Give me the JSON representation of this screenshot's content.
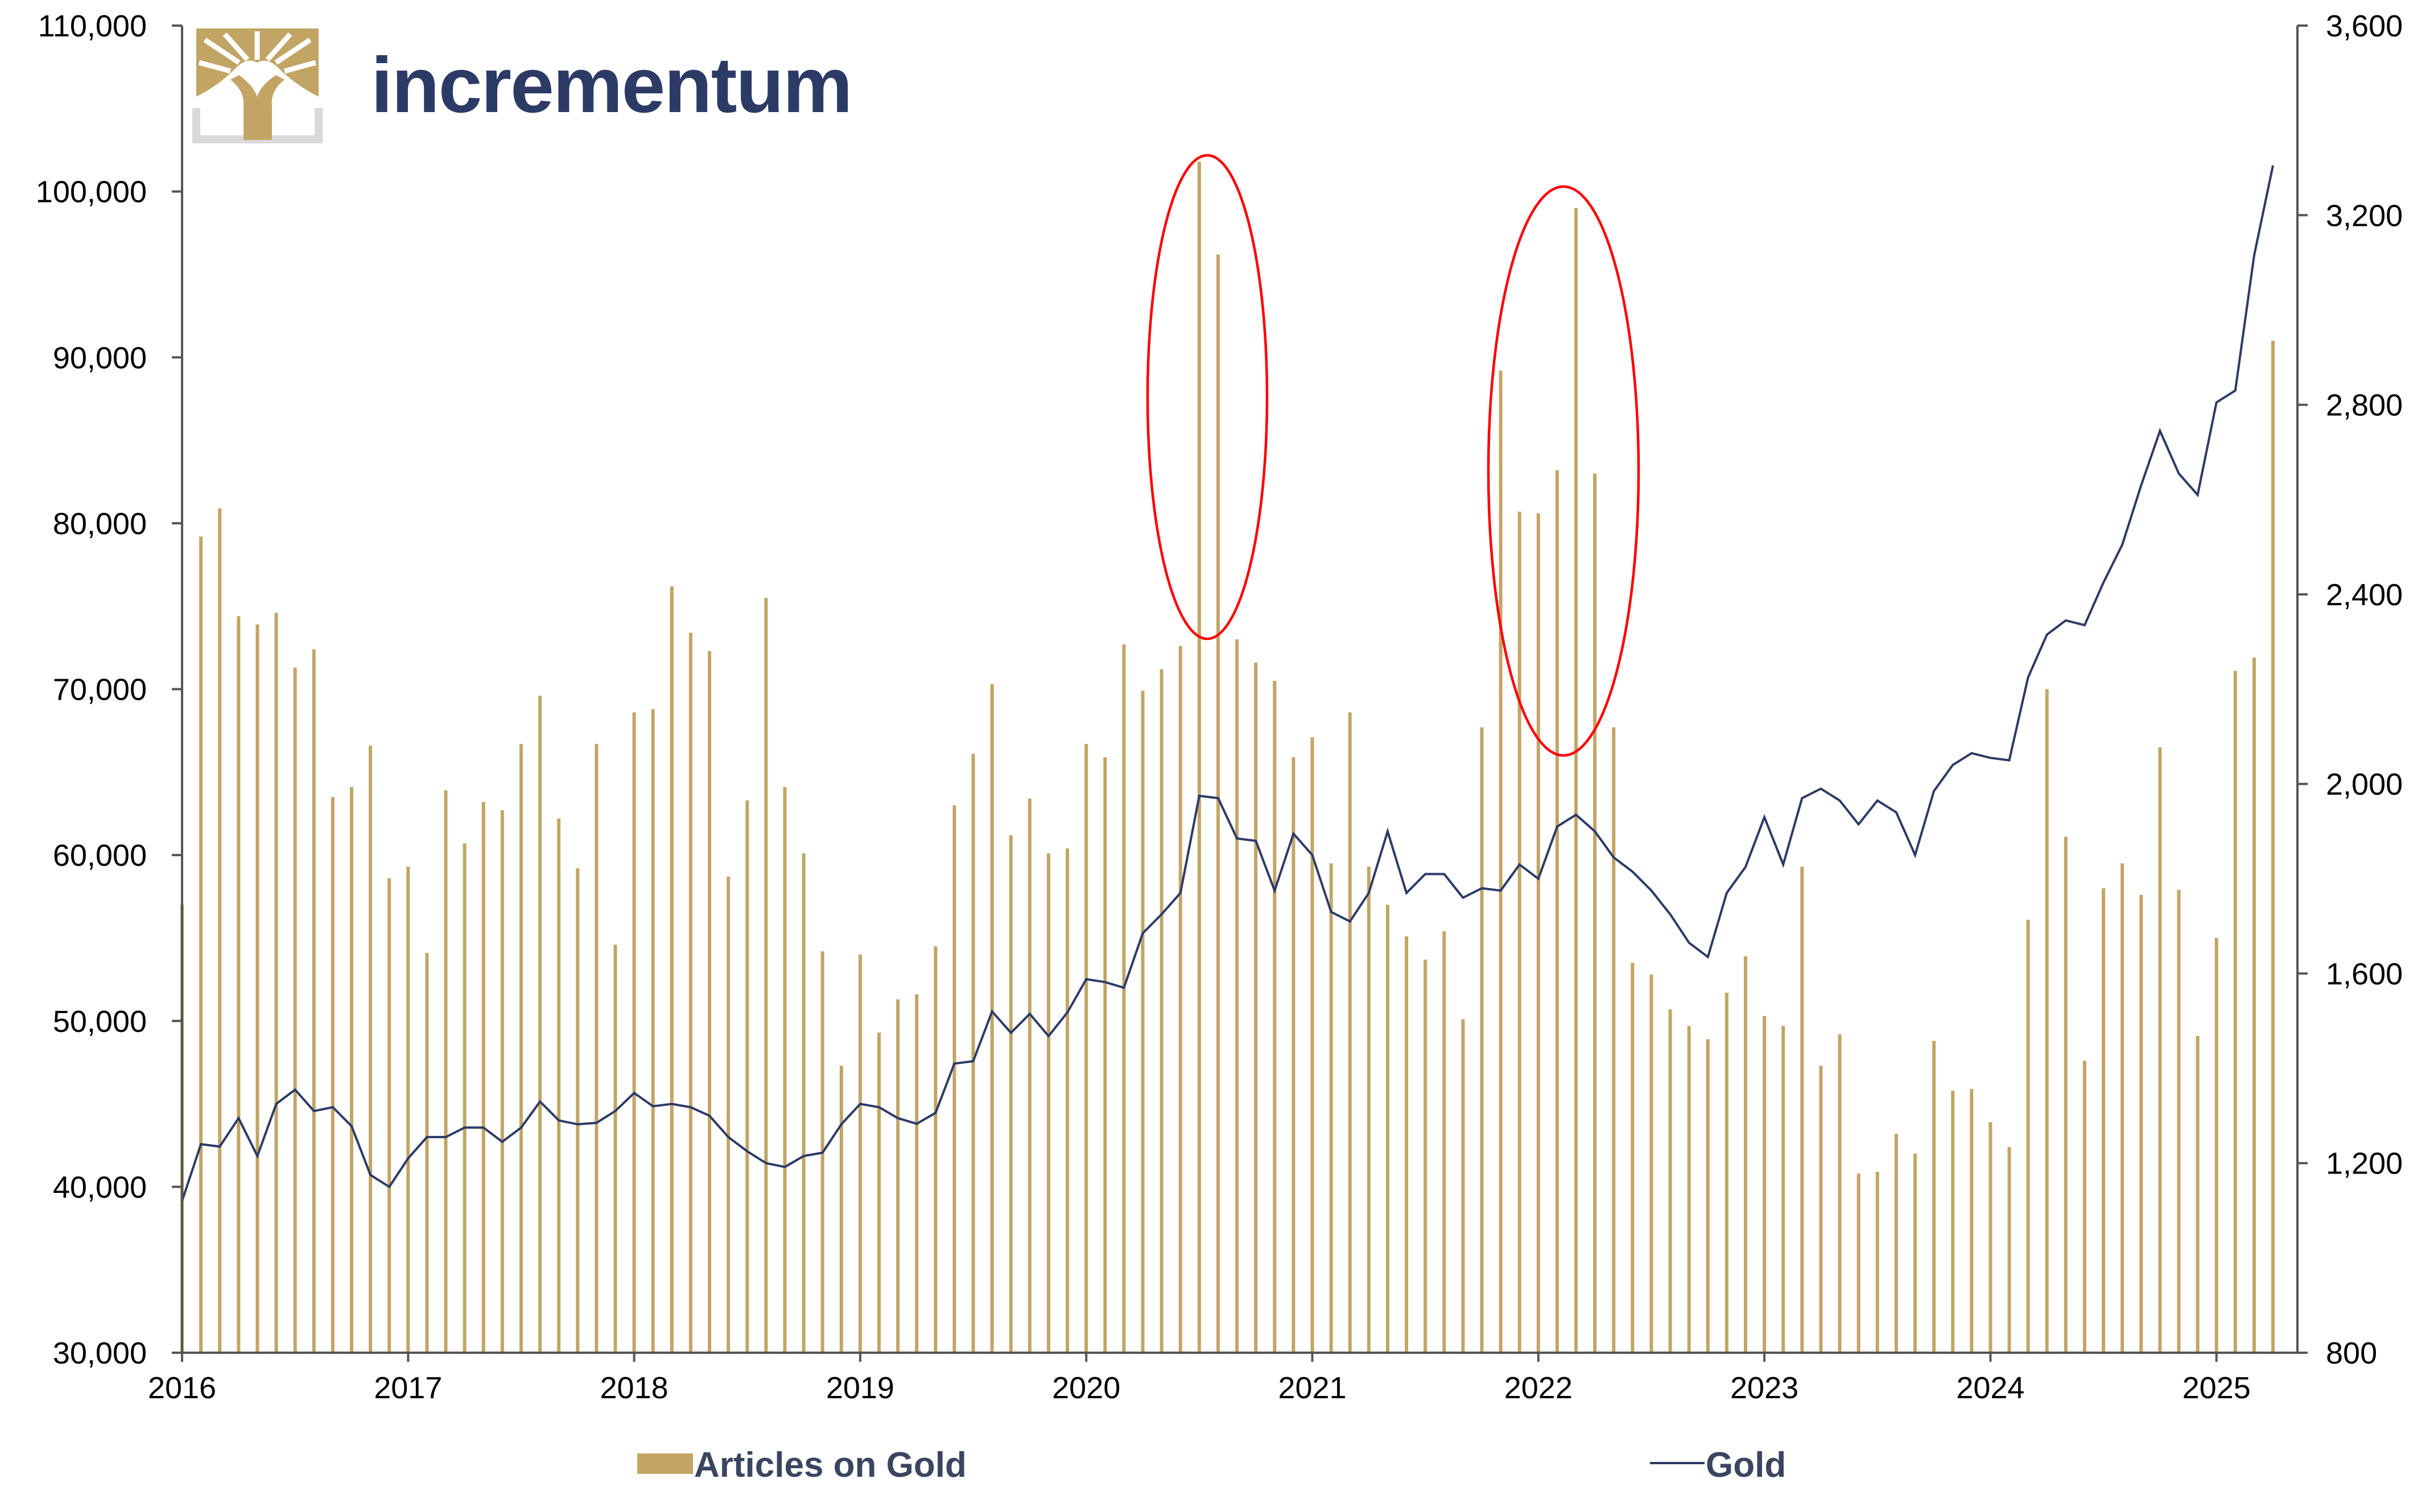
{
  "logo": {
    "text": "incrementum"
  },
  "chart_data": {
    "type": "bar",
    "series": [
      {
        "name": "Articles on Gold",
        "type": "bar",
        "axis": "left",
        "color": "#c2a565",
        "start": "2016-01",
        "values": [
          57000,
          79200,
          80900,
          74400,
          73900,
          74600,
          71300,
          72400,
          63500,
          64100,
          66600,
          58600,
          59300,
          54100,
          63900,
          60700,
          63200,
          62700,
          66700,
          69600,
          62200,
          59200,
          66700,
          54600,
          68600,
          68800,
          76200,
          73400,
          72300,
          58700,
          63300,
          75500,
          64100,
          60100,
          54200,
          47300,
          54000,
          49300,
          51300,
          51600,
          54500,
          63000,
          66100,
          70300,
          61200,
          63400,
          60100,
          60400,
          66700,
          65900,
          72700,
          69900,
          71200,
          72600,
          101800,
          96200,
          73000,
          71600,
          70500,
          65900,
          67100,
          59500,
          68600,
          59300,
          57000,
          55100,
          53700,
          55400,
          50100,
          67700,
          89200,
          80700,
          80600,
          83200,
          99000,
          83000,
          67700,
          53500,
          52800,
          50700,
          49700,
          48900,
          51700,
          53900,
          50300,
          49700,
          59300,
          47300,
          49200,
          40800,
          40900,
          43200,
          42000,
          48800,
          45800,
          45900,
          43900,
          42400,
          56100,
          70000,
          61100,
          47600,
          58000,
          59500,
          57600,
          66500,
          57900,
          49100,
          55000,
          71100,
          71900,
          91000
        ]
      },
      {
        "name": "Gold",
        "type": "line",
        "axis": "right",
        "color": "#2c3a66",
        "start": "2016-01",
        "values": [
          1120,
          1240,
          1235,
          1295,
          1215,
          1325,
          1355,
          1310,
          1318,
          1278,
          1175,
          1150,
          1210,
          1255,
          1255,
          1275,
          1275,
          1245,
          1275,
          1330,
          1290,
          1282,
          1285,
          1310,
          1348,
          1320,
          1325,
          1318,
          1300,
          1255,
          1225,
          1200,
          1192,
          1215,
          1222,
          1282,
          1325,
          1318,
          1295,
          1283,
          1306,
          1410,
          1415,
          1520,
          1475,
          1515,
          1468,
          1518,
          1588,
          1582,
          1570,
          1685,
          1725,
          1770,
          1975,
          1970,
          1885,
          1880,
          1775,
          1895,
          1850,
          1730,
          1710,
          1770,
          1900,
          1770,
          1810,
          1810,
          1760,
          1780,
          1775,
          1830,
          1800,
          1910,
          1935,
          1900,
          1845,
          1815,
          1775,
          1725,
          1665,
          1635,
          1770,
          1825,
          1930,
          1830,
          1970,
          1990,
          1965,
          1915,
          1965,
          1940,
          1850,
          1985,
          2040,
          2065,
          2055,
          2050,
          2225,
          2315,
          2345,
          2335,
          2425,
          2505,
          2630,
          2745,
          2655,
          2610,
          2805,
          2830,
          3115,
          3305
        ]
      }
    ],
    "y_left": {
      "min": 30000,
      "max": 110000,
      "ticks": [
        "30,000",
        "40,000",
        "50,000",
        "60,000",
        "70,000",
        "80,000",
        "90,000",
        "100,000",
        "110,000"
      ]
    },
    "y_right": {
      "min": 800,
      "max": 3600,
      "ticks": [
        "800",
        "1,200",
        "1,600",
        "2,000",
        "2,400",
        "2,800",
        "3,200",
        "3,600"
      ]
    },
    "x_ticks": [
      "2016",
      "2017",
      "2018",
      "2019",
      "2020",
      "2021",
      "2022",
      "2023",
      "2024",
      "2025"
    ],
    "legend_placement": "bottom",
    "grid": false,
    "annotations": [
      {
        "shape": "ellipse",
        "color": "#ff0000",
        "around": "2020-07 to 2020-08"
      },
      {
        "shape": "ellipse",
        "color": "#ff0000",
        "around": "2021-11 to 2022-05"
      }
    ]
  }
}
